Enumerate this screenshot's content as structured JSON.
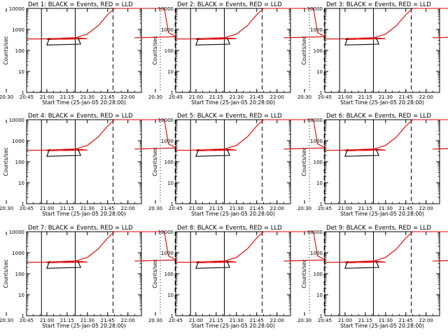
{
  "common": {
    "xlabel": "Start Time (25-Jan-05 20:28:00)",
    "ylabel": "Counts/sec",
    "x_ticks": [
      "20:30",
      "20:45",
      "21:00",
      "21:15",
      "21:30",
      "21:45",
      "22:00"
    ],
    "y_ticks": [
      "1",
      "10",
      "100",
      "1000",
      "10000"
    ],
    "colors": {
      "events": "#000000",
      "lld": "#dd0000"
    }
  },
  "chart_data": [
    {
      "type": "line",
      "title": "Det 1: BLACK = Events, RED = LLD",
      "xlabel": "Start Time (25-Jan-05 20:28:00)",
      "ylabel": "Counts/sec",
      "x_unit": "minutes",
      "x_range": [
        20.45,
        22.1
      ],
      "ylim": [
        1,
        10000
      ],
      "y_scale": "log",
      "vlines_solid": [
        20.56,
        20.81
      ],
      "vlines_dashed": [
        21.49,
        21.95
      ],
      "vlines_dotted": [
        21.84
      ],
      "series": [
        {
          "color": "#dd0000",
          "x": [
            20.45,
            20.55,
            20.7,
            20.8,
            20.9,
            21.0,
            21.1,
            21.2,
            21.3,
            21.38,
            21.45,
            21.5,
            21.87,
            21.9,
            21.96,
            22.05
          ],
          "y": [
            350,
            350,
            380,
            400,
            360,
            330,
            340,
            380,
            600,
            1500,
            5000,
            10000,
            10000,
            700,
            450,
            400
          ]
        },
        {
          "color": "#000000",
          "x": [
            20.83,
            20.85,
            21.0,
            21.02
          ],
          "y": [
            400,
            200,
            180,
            400
          ]
        }
      ]
    },
    {
      "type": "line",
      "title": "Det 2: BLACK = Events, RED = LLD",
      "xlabel": "Start Time (25-Jan-05 20:28:00)",
      "ylabel": "Counts/sec",
      "x_unit": "minutes",
      "x_range": [
        20.45,
        22.1
      ],
      "ylim": [
        1,
        10000
      ],
      "y_scale": "log",
      "vlines_solid": [
        20.56,
        20.81
      ],
      "vlines_dashed": [
        21.49,
        21.95
      ],
      "vlines_dotted": [
        21.84
      ],
      "series": [
        {
          "color": "#dd0000",
          "x": [
            20.45,
            20.55,
            20.7,
            20.8,
            20.9,
            21.0,
            21.1,
            21.2,
            21.3,
            21.38,
            21.45,
            21.5,
            21.87,
            21.9,
            21.96,
            22.05
          ],
          "y": [
            350,
            350,
            380,
            400,
            360,
            330,
            340,
            380,
            600,
            1500,
            5000,
            10000,
            10000,
            700,
            450,
            400
          ]
        },
        {
          "color": "#000000",
          "x": [
            20.83,
            20.85,
            21.0,
            21.02
          ],
          "y": [
            400,
            200,
            180,
            400
          ]
        }
      ]
    },
    {
      "type": "line",
      "title": "Det 3: BLACK = Events, RED = LLD",
      "xlabel": "Start Time (25-Jan-05 20:28:00)",
      "ylabel": "Counts/sec",
      "x_unit": "minutes",
      "x_range": [
        20.45,
        22.1
      ],
      "ylim": [
        1,
        10000
      ],
      "y_scale": "log",
      "vlines_solid": [
        20.56,
        20.81
      ],
      "vlines_dashed": [
        21.49,
        21.95
      ],
      "vlines_dotted": [
        21.84
      ],
      "series": [
        {
          "color": "#dd0000",
          "x": [
            20.45,
            20.55,
            20.7,
            20.8,
            20.9,
            21.0,
            21.1,
            21.2,
            21.3,
            21.38,
            21.45,
            21.5,
            21.87,
            21.9,
            21.96,
            22.05
          ],
          "y": [
            350,
            350,
            380,
            400,
            360,
            330,
            340,
            380,
            600,
            1500,
            5000,
            10000,
            10000,
            700,
            450,
            400
          ]
        },
        {
          "color": "#000000",
          "x": [
            20.83,
            20.85,
            21.0,
            21.02
          ],
          "y": [
            400,
            200,
            180,
            400
          ]
        }
      ]
    },
    {
      "type": "line",
      "title": "Det 4: BLACK = Events, RED = LLD",
      "xlabel": "Start Time (25-Jan-05 20:28:00)",
      "ylabel": "Counts/sec",
      "x_unit": "minutes",
      "x_range": [
        20.45,
        22.1
      ],
      "ylim": [
        1,
        10000
      ],
      "y_scale": "log",
      "vlines_solid": [
        20.56,
        20.81
      ],
      "vlines_dashed": [
        21.49,
        21.95
      ],
      "vlines_dotted": [
        21.84
      ],
      "series": [
        {
          "color": "#dd0000",
          "x": [
            20.45,
            20.55,
            20.7,
            20.8,
            20.9,
            21.0,
            21.1,
            21.2,
            21.3,
            21.38,
            21.45,
            21.5,
            21.87,
            21.9,
            21.96,
            22.05
          ],
          "y": [
            350,
            350,
            380,
            400,
            360,
            330,
            340,
            380,
            600,
            1500,
            5000,
            10000,
            10000,
            700,
            450,
            400
          ]
        },
        {
          "color": "#000000",
          "x": [
            20.83,
            20.85,
            21.0,
            21.02
          ],
          "y": [
            400,
            200,
            180,
            400
          ]
        }
      ]
    },
    {
      "type": "line",
      "title": "Det 5: BLACK = Events, RED = LLD",
      "xlabel": "Start Time (25-Jan-05 20:28:00)",
      "ylabel": "Counts/sec",
      "x_unit": "minutes",
      "x_range": [
        20.45,
        22.1
      ],
      "ylim": [
        1,
        10000
      ],
      "y_scale": "log",
      "vlines_solid": [
        20.56,
        20.81
      ],
      "vlines_dashed": [
        21.49,
        21.95
      ],
      "vlines_dotted": [
        21.84
      ],
      "series": [
        {
          "color": "#dd0000",
          "x": [
            20.45,
            20.55,
            20.7,
            20.8,
            20.9,
            21.0,
            21.1,
            21.2,
            21.3,
            21.38,
            21.45,
            21.5,
            21.87,
            21.9,
            21.96,
            22.05
          ],
          "y": [
            350,
            350,
            380,
            400,
            360,
            330,
            340,
            380,
            600,
            1500,
            5000,
            10000,
            10000,
            700,
            450,
            400
          ]
        },
        {
          "color": "#000000",
          "x": [
            20.83,
            20.85,
            21.0,
            21.02
          ],
          "y": [
            400,
            200,
            180,
            400
          ]
        }
      ]
    },
    {
      "type": "line",
      "title": "Det 6: BLACK = Events, RED = LLD",
      "xlabel": "Start Time (25-Jan-05 20:28:00)",
      "ylabel": "Counts/sec",
      "x_unit": "minutes",
      "x_range": [
        20.45,
        22.1
      ],
      "ylim": [
        1,
        10000
      ],
      "y_scale": "log",
      "vlines_solid": [
        20.56,
        20.81
      ],
      "vlines_dashed": [
        21.49,
        21.95
      ],
      "vlines_dotted": [
        21.84
      ],
      "series": [
        {
          "color": "#dd0000",
          "x": [
            20.45,
            20.55,
            20.7,
            20.8,
            20.9,
            21.0,
            21.1,
            21.2,
            21.3,
            21.38,
            21.45,
            21.5,
            21.87,
            21.9,
            21.96,
            22.05
          ],
          "y": [
            350,
            350,
            380,
            400,
            360,
            330,
            340,
            380,
            600,
            1500,
            5000,
            10000,
            10000,
            700,
            450,
            400
          ]
        },
        {
          "color": "#000000",
          "x": [
            20.83,
            20.85,
            21.0,
            21.02
          ],
          "y": [
            400,
            200,
            180,
            400
          ]
        }
      ]
    },
    {
      "type": "line",
      "title": "Det 7: BLACK = Events, RED = LLD",
      "xlabel": "Start Time (25-Jan-05 20:28:00)",
      "ylabel": "Counts/sec",
      "x_unit": "minutes",
      "x_range": [
        20.45,
        22.1
      ],
      "ylim": [
        1,
        10000
      ],
      "y_scale": "log",
      "vlines_solid": [
        20.56,
        20.81
      ],
      "vlines_dashed": [
        21.49,
        21.95
      ],
      "vlines_dotted": [
        21.84
      ],
      "series": [
        {
          "color": "#dd0000",
          "x": [
            20.45,
            20.55,
            20.7,
            20.8,
            20.9,
            21.0,
            21.1,
            21.2,
            21.3,
            21.38,
            21.45,
            21.5,
            21.87,
            21.9,
            21.96,
            22.05
          ],
          "y": [
            350,
            350,
            380,
            400,
            360,
            330,
            340,
            380,
            600,
            1500,
            5000,
            10000,
            10000,
            700,
            450,
            400
          ]
        },
        {
          "color": "#000000",
          "x": [
            20.83,
            20.85,
            21.0,
            21.02
          ],
          "y": [
            400,
            200,
            180,
            400
          ]
        }
      ]
    },
    {
      "type": "line",
      "title": "Det 8: BLACK = Events, RED = LLD",
      "xlabel": "Start Time (25-Jan-05 20:28:00)",
      "ylabel": "Counts/sec",
      "x_unit": "minutes",
      "x_range": [
        20.45,
        22.1
      ],
      "ylim": [
        1,
        10000
      ],
      "y_scale": "log",
      "vlines_solid": [
        20.56,
        20.81
      ],
      "vlines_dashed": [
        21.49,
        21.95
      ],
      "vlines_dotted": [
        21.84
      ],
      "series": [
        {
          "color": "#dd0000",
          "x": [
            20.45,
            20.55,
            20.7,
            20.8,
            20.9,
            21.0,
            21.1,
            21.2,
            21.3,
            21.38,
            21.45,
            21.5,
            21.87,
            21.9,
            21.96,
            22.05
          ],
          "y": [
            350,
            350,
            380,
            400,
            360,
            330,
            340,
            380,
            600,
            1500,
            5000,
            10000,
            10000,
            700,
            450,
            400
          ]
        },
        {
          "color": "#000000",
          "x": [
            20.83,
            20.85,
            21.0,
            21.02
          ],
          "y": [
            400,
            200,
            180,
            400
          ]
        }
      ]
    },
    {
      "type": "line",
      "title": "Det 9: BLACK = Events, RED = LLD",
      "xlabel": "Start Time (25-Jan-05 20:28:00)",
      "ylabel": "Counts/sec",
      "x_unit": "minutes",
      "x_range": [
        20.45,
        22.1
      ],
      "ylim": [
        1,
        10000
      ],
      "y_scale": "log",
      "vlines_solid": [
        20.56,
        20.81
      ],
      "vlines_dashed": [
        21.49,
        21.95
      ],
      "vlines_dotted": [
        21.84
      ],
      "series": [
        {
          "color": "#dd0000",
          "x": [
            20.45,
            20.55,
            20.7,
            20.8,
            20.9,
            21.0,
            21.1,
            21.2,
            21.3,
            21.38,
            21.45,
            21.5,
            21.87,
            21.9,
            21.96,
            22.05
          ],
          "y": [
            350,
            350,
            380,
            400,
            360,
            330,
            340,
            380,
            600,
            1500,
            5000,
            10000,
            10000,
            700,
            450,
            400
          ]
        },
        {
          "color": "#000000",
          "x": [
            20.83,
            20.85,
            21.0,
            21.02
          ],
          "y": [
            400,
            200,
            180,
            400
          ]
        }
      ]
    }
  ]
}
